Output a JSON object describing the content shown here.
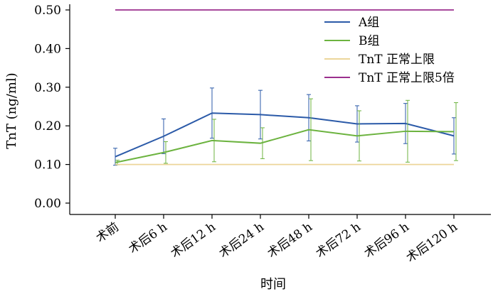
{
  "chart_data": {
    "type": "line",
    "title": "",
    "xlabel": "时间",
    "ylabel": "TnT (ng/ml)",
    "categories": [
      "术前",
      "术后6 h",
      "术后12 h",
      "术后24 h",
      "术后48 h",
      "术后72 h",
      "术后96 h",
      "术后120 h"
    ],
    "ylim": [
      0.0,
      0.5
    ],
    "yticks": [
      "0.00",
      "0.10",
      "0.20",
      "0.30",
      "0.40",
      "0.50"
    ],
    "grid": false,
    "legend_position": "top-right",
    "series": [
      {
        "name": "A组",
        "color": "#2b5aa8",
        "values": [
          0.12,
          0.173,
          0.233,
          0.229,
          0.221,
          0.205,
          0.206,
          0.174
        ],
        "error": [
          0.022,
          0.045,
          0.065,
          0.063,
          0.06,
          0.047,
          0.052,
          0.047
        ]
      },
      {
        "name": "B组",
        "color": "#6cb33f",
        "values": [
          0.105,
          0.131,
          0.162,
          0.155,
          0.19,
          0.174,
          0.186,
          0.185
        ],
        "error": [
          0.006,
          0.028,
          0.055,
          0.04,
          0.08,
          0.065,
          0.08,
          0.075
        ]
      },
      {
        "name": "TnT 正常上限",
        "color": "#ecd69a",
        "values": [
          0.1,
          0.1,
          0.1,
          0.1,
          0.1,
          0.1,
          0.1,
          0.1
        ]
      },
      {
        "name": "TnT 正常上限5倍",
        "color": "#9b2f8e",
        "values": [
          0.5,
          0.5,
          0.5,
          0.5,
          0.5,
          0.5,
          0.5,
          0.5
        ]
      }
    ]
  }
}
